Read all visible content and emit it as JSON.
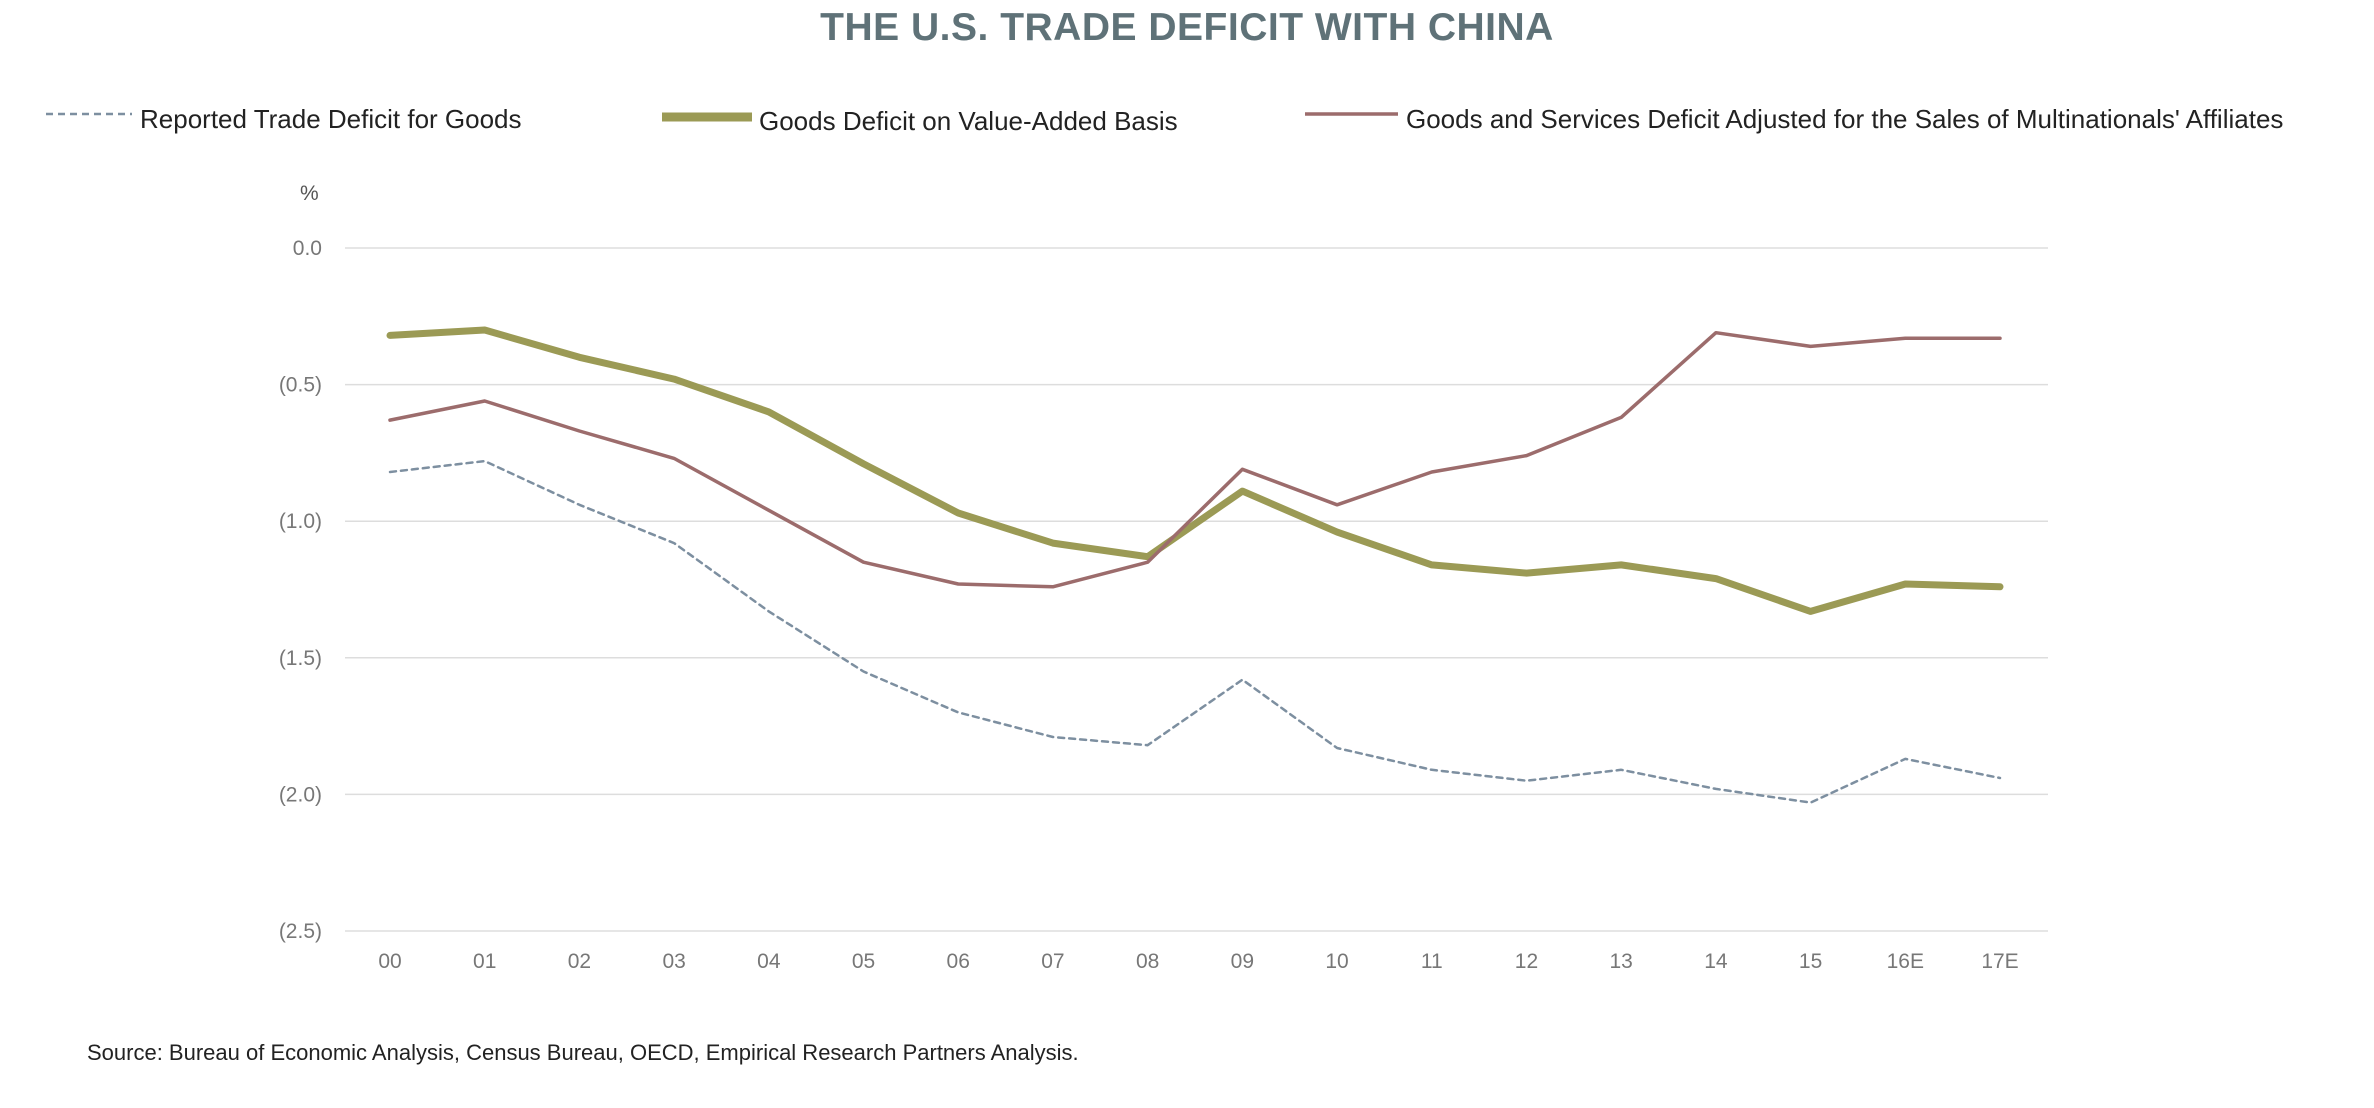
{
  "chart_data": {
    "type": "line",
    "title": "THE U.S. TRADE DEFICIT WITH CHINA",
    "ylabel": "%",
    "xlabel": "",
    "categories": [
      "00",
      "01",
      "02",
      "03",
      "04",
      "05",
      "06",
      "07",
      "08",
      "09",
      "10",
      "11",
      "12",
      "13",
      "14",
      "15",
      "16E",
      "17E"
    ],
    "ylim": [
      -2.5,
      0.0
    ],
    "y_ticks": [
      0.0,
      -0.5,
      -1.0,
      -1.5,
      -2.0,
      -2.5
    ],
    "y_tick_labels": [
      "0.0",
      "(0.5)",
      "(1.0)",
      "(1.5)",
      "(2.0)",
      "(2.5)"
    ],
    "grid": "horizontal",
    "legend_position": "top",
    "series": [
      {
        "name": "Reported Trade Deficit for Goods",
        "color": "#7d8fa0",
        "style": "dashed",
        "values": [
          -0.82,
          -0.78,
          -0.94,
          -1.08,
          -1.33,
          -1.55,
          -1.7,
          -1.79,
          -1.82,
          -1.58,
          -1.83,
          -1.91,
          -1.95,
          -1.91,
          -1.98,
          -2.03,
          -1.87,
          -1.94
        ]
      },
      {
        "name": "Goods Deficit on Value-Added Basis",
        "color": "#9b9a55",
        "style": "thick",
        "values": [
          -0.32,
          -0.3,
          -0.4,
          -0.48,
          -0.6,
          -0.79,
          -0.97,
          -1.08,
          -1.13,
          -0.89,
          -1.04,
          -1.16,
          -1.19,
          -1.16,
          -1.21,
          -1.33,
          -1.23,
          -1.24
        ]
      },
      {
        "name": "Goods and Services Deficit Adjusted for the Sales of Multinationals' Affiliates",
        "color": "#9c6c6c",
        "style": "solid",
        "values": [
          -0.63,
          -0.56,
          -0.67,
          -0.77,
          -0.96,
          -1.15,
          -1.23,
          -1.24,
          -1.15,
          -0.81,
          -0.94,
          -0.82,
          -0.76,
          -0.62,
          -0.31,
          -0.36,
          -0.33,
          -0.33
        ]
      }
    ],
    "source": "Source: Bureau of Economic Analysis, Census Bureau, OECD, Empirical Research Partners Analysis."
  }
}
